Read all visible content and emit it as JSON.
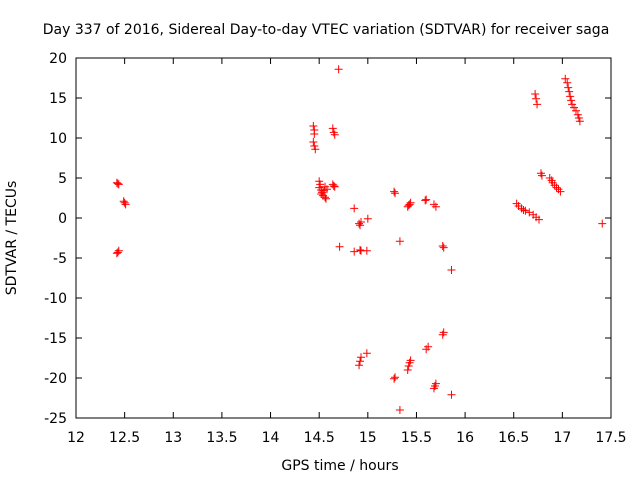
{
  "chart_data": {
    "type": "scatter",
    "title": "Day 337 of 2016, Sidereal Day-to-day VTEC variation (SDTVAR) for receiver saga",
    "xlabel": "GPS time / hours",
    "ylabel": "SDTVAR / TECUs",
    "xlim": [
      12,
      17.5
    ],
    "ylim": [
      -25,
      20
    ],
    "xticks": [
      "12",
      "12.5",
      "13",
      "13.5",
      "14",
      "14.5",
      "15",
      "15.5",
      "16",
      "16.5",
      "17",
      "17.5"
    ],
    "yticks": [
      "-25",
      "-20",
      "-15",
      "-10",
      "-5",
      "0",
      "5",
      "10",
      "15",
      "20"
    ],
    "grid": false,
    "marker": "+",
    "marker_color": "#ff0000",
    "series": [
      {
        "name": "SDTVAR",
        "points": [
          [
            12.42,
            4.4
          ],
          [
            12.43,
            4.3
          ],
          [
            12.44,
            4.2
          ],
          [
            12.42,
            -4.4
          ],
          [
            12.43,
            -4.3
          ],
          [
            12.44,
            -4.1
          ],
          [
            12.49,
            2.1
          ],
          [
            12.5,
            1.9
          ],
          [
            12.51,
            1.7
          ],
          [
            14.44,
            11.5
          ],
          [
            14.45,
            11.0
          ],
          [
            14.45,
            10.5
          ],
          [
            14.44,
            9.5
          ],
          [
            14.45,
            9.0
          ],
          [
            14.46,
            8.6
          ],
          [
            14.5,
            4.6
          ],
          [
            14.51,
            4.2
          ],
          [
            14.5,
            3.8
          ],
          [
            14.52,
            3.5
          ],
          [
            14.53,
            3.2
          ],
          [
            14.52,
            3.0
          ],
          [
            14.54,
            2.8
          ],
          [
            14.55,
            3.4
          ],
          [
            14.56,
            2.6
          ],
          [
            14.57,
            2.4
          ],
          [
            14.58,
            3.6
          ],
          [
            14.56,
            3.9
          ],
          [
            14.64,
            11.2
          ],
          [
            14.65,
            10.7
          ],
          [
            14.66,
            10.4
          ],
          [
            14.64,
            4.2
          ],
          [
            14.65,
            4.0
          ],
          [
            14.66,
            3.9
          ],
          [
            14.7,
            18.6
          ],
          [
            14.71,
            -3.6
          ],
          [
            14.86,
            1.2
          ],
          [
            14.86,
            -4.2
          ],
          [
            14.91,
            -0.7
          ],
          [
            14.92,
            -0.9
          ],
          [
            14.93,
            -0.5
          ],
          [
            14.92,
            -4.0
          ],
          [
            14.93,
            -4.1
          ],
          [
            14.99,
            -4.1
          ],
          [
            14.91,
            -18.4
          ],
          [
            14.92,
            -17.9
          ],
          [
            14.93,
            -17.4
          ],
          [
            14.99,
            -16.9
          ],
          [
            15.0,
            -0.1
          ],
          [
            15.27,
            3.3
          ],
          [
            15.28,
            3.1
          ],
          [
            15.27,
            -20.1
          ],
          [
            15.28,
            -19.9
          ],
          [
            15.33,
            -2.9
          ],
          [
            15.33,
            -24.0
          ],
          [
            15.41,
            1.4
          ],
          [
            15.42,
            1.6
          ],
          [
            15.43,
            1.7
          ],
          [
            15.44,
            1.9
          ],
          [
            15.41,
            -19.0
          ],
          [
            15.42,
            -18.5
          ],
          [
            15.43,
            -18.1
          ],
          [
            15.44,
            -17.8
          ],
          [
            15.59,
            2.2
          ],
          [
            15.6,
            2.3
          ],
          [
            15.6,
            -16.4
          ],
          [
            15.62,
            -16.1
          ],
          [
            15.68,
            1.7
          ],
          [
            15.7,
            1.4
          ],
          [
            15.68,
            -21.3
          ],
          [
            15.69,
            -21.0
          ],
          [
            15.7,
            -20.7
          ],
          [
            15.77,
            -3.5
          ],
          [
            15.78,
            -3.7
          ],
          [
            15.77,
            -14.6
          ],
          [
            15.78,
            -14.3
          ],
          [
            15.86,
            -6.5
          ],
          [
            15.86,
            -22.1
          ],
          [
            16.53,
            1.8
          ],
          [
            16.55,
            1.5
          ],
          [
            16.58,
            1.2
          ],
          [
            16.6,
            1.0
          ],
          [
            16.62,
            0.9
          ],
          [
            16.66,
            0.7
          ],
          [
            16.7,
            0.4
          ],
          [
            16.73,
            0.1
          ],
          [
            16.76,
            -0.2
          ],
          [
            16.72,
            15.5
          ],
          [
            16.73,
            14.9
          ],
          [
            16.74,
            14.2
          ],
          [
            16.78,
            5.6
          ],
          [
            16.79,
            5.3
          ],
          [
            16.87,
            5.0
          ],
          [
            16.89,
            4.7
          ],
          [
            16.9,
            4.4
          ],
          [
            16.92,
            4.1
          ],
          [
            16.94,
            3.8
          ],
          [
            16.96,
            3.6
          ],
          [
            16.98,
            3.3
          ],
          [
            17.03,
            17.4
          ],
          [
            17.05,
            16.9
          ],
          [
            17.06,
            16.3
          ],
          [
            17.07,
            15.8
          ],
          [
            17.08,
            15.2
          ],
          [
            17.09,
            14.7
          ],
          [
            17.1,
            14.2
          ],
          [
            17.12,
            13.8
          ],
          [
            17.14,
            13.4
          ],
          [
            17.16,
            12.9
          ],
          [
            17.17,
            12.5
          ],
          [
            17.18,
            12.1
          ],
          [
            17.41,
            -0.7
          ]
        ]
      }
    ]
  }
}
